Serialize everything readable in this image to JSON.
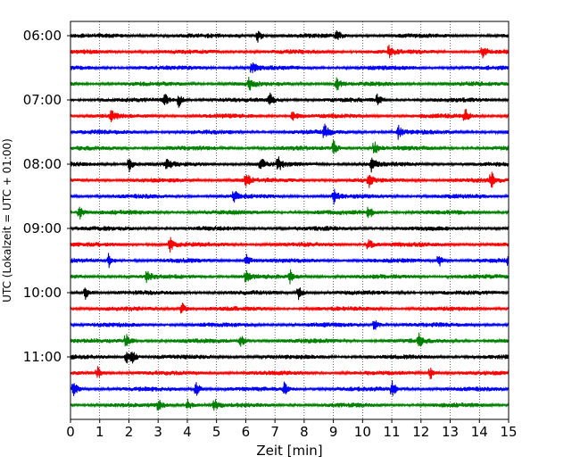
{
  "chart_data": {
    "type": "line",
    "xlabel": "Zeit  [min]",
    "ylabel": "UTC (Lokalzeit = UTC + 01:00)",
    "xlim": [
      0,
      15
    ],
    "x_ticks": [
      0,
      1,
      2,
      3,
      4,
      5,
      6,
      7,
      8,
      9,
      10,
      11,
      12,
      13,
      14,
      15
    ],
    "y_ticks": [
      "06:00",
      "07:00",
      "08:00",
      "09:00",
      "10:00",
      "11:00"
    ],
    "trace_start_hour": 6,
    "trace_interval_minutes": 15,
    "trace_count": 24,
    "trace_colors": [
      "#000000",
      "#ff0000",
      "#0000ff",
      "#008000"
    ],
    "grid": {
      "x": "dotted"
    },
    "series": [
      {
        "time": "06:00",
        "color": "#000000",
        "events_min": [
          6.4,
          9.1
        ]
      },
      {
        "time": "06:15",
        "color": "#ff0000",
        "events_min": [
          10.9,
          14.1
        ]
      },
      {
        "time": "06:30",
        "color": "#0000ff",
        "events_min": [
          6.2
        ]
      },
      {
        "time": "06:45",
        "color": "#008000",
        "events_min": [
          6.1,
          9.1
        ]
      },
      {
        "time": "07:00",
        "color": "#000000",
        "events_min": [
          3.2,
          3.7,
          6.8,
          10.5
        ]
      },
      {
        "time": "07:15",
        "color": "#ff0000",
        "events_min": [
          1.4,
          7.6,
          13.5
        ]
      },
      {
        "time": "07:30",
        "color": "#0000ff",
        "events_min": [
          8.7,
          11.2
        ]
      },
      {
        "time": "07:45",
        "color": "#008000",
        "events_min": [
          9.0,
          10.4
        ]
      },
      {
        "time": "08:00",
        "color": "#000000",
        "events_min": [
          2.0,
          3.3,
          6.5,
          7.1,
          10.3
        ]
      },
      {
        "time": "08:15",
        "color": "#ff0000",
        "events_min": [
          6.0,
          10.2,
          14.4
        ]
      },
      {
        "time": "08:30",
        "color": "#0000ff",
        "events_min": [
          5.6,
          9.0
        ]
      },
      {
        "time": "08:45",
        "color": "#008000",
        "events_min": [
          0.3,
          10.2
        ]
      },
      {
        "time": "09:00",
        "color": "#000000",
        "events_min": []
      },
      {
        "time": "09:15",
        "color": "#ff0000",
        "events_min": [
          3.4,
          10.2
        ]
      },
      {
        "time": "09:30",
        "color": "#0000ff",
        "events_min": [
          1.3,
          6.0,
          12.6,
          15.0
        ]
      },
      {
        "time": "09:45",
        "color": "#008000",
        "events_min": [
          2.6,
          6.0,
          7.5
        ]
      },
      {
        "time": "10:00",
        "color": "#000000",
        "events_min": [
          0.5,
          7.8
        ]
      },
      {
        "time": "10:15",
        "color": "#ff0000",
        "events_min": [
          3.8
        ]
      },
      {
        "time": "10:30",
        "color": "#0000ff",
        "events_min": [
          10.4
        ]
      },
      {
        "time": "10:45",
        "color": "#008000",
        "events_min": [
          1.9,
          5.8,
          11.9
        ]
      },
      {
        "time": "11:00",
        "color": "#000000",
        "events_min": [
          1.9,
          2.1
        ]
      },
      {
        "time": "11:15",
        "color": "#ff0000",
        "events_min": [
          0.9,
          12.3
        ]
      },
      {
        "time": "11:30",
        "color": "#0000ff",
        "events_min": [
          0.1,
          4.3,
          7.3,
          11.0
        ]
      },
      {
        "time": "11:45",
        "color": "#008000",
        "events_min": [
          3.0,
          4.0,
          4.9
        ]
      }
    ]
  }
}
